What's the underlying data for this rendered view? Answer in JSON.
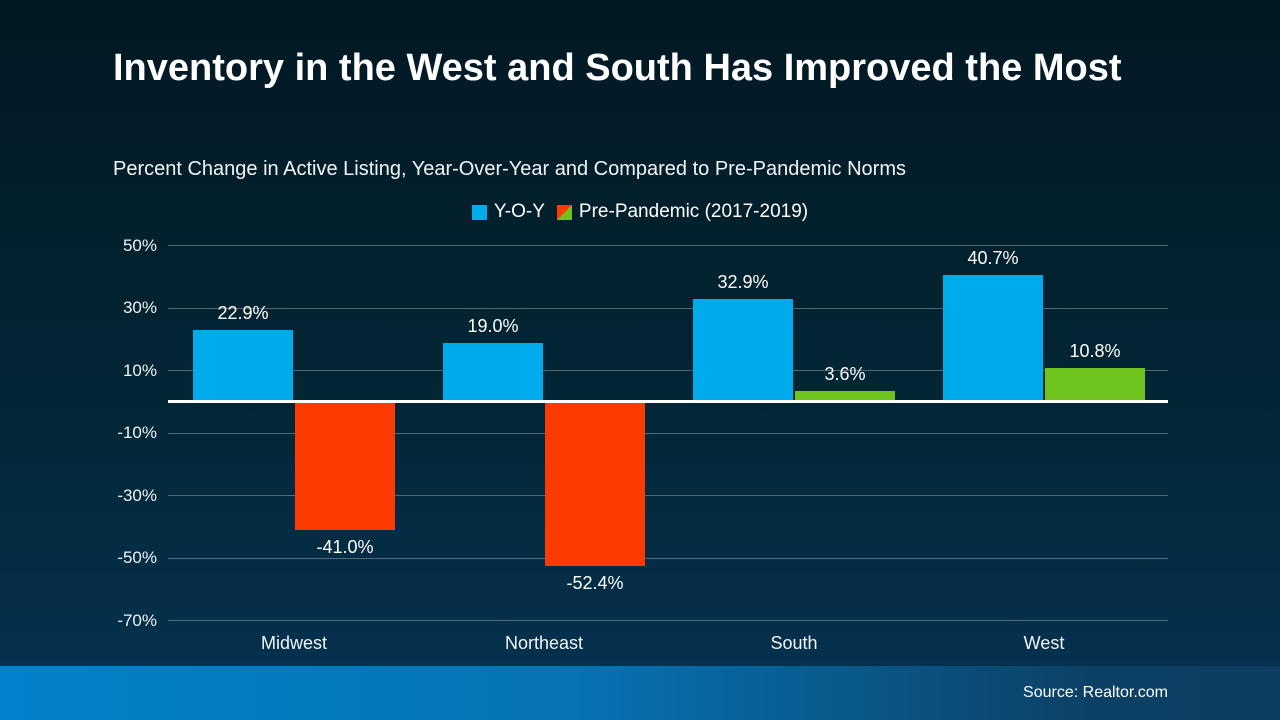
{
  "header": {
    "title": "Inventory in the West and South Has Improved the Most",
    "subtitle": "Percent Change in Active Listing, Year-Over-Year and Compared to Pre-Pandemic Norms"
  },
  "legend": {
    "items": [
      {
        "name": "yoy",
        "label": "Y-O-Y",
        "swatch": "solid",
        "color": "#00ABEC"
      },
      {
        "name": "pre-pandemic",
        "label": "Pre-Pandemic (2017-2019)",
        "swatch": "split",
        "color_negative": "#FB3B02",
        "color_positive": "#6EC41D"
      }
    ]
  },
  "footer": {
    "source": "Source: Realtor.com"
  },
  "colors": {
    "background_top": "#021822",
    "background_bottom": "#053353",
    "bar_yoy": "#00ABEC",
    "bar_pre_positive": "#6EC41D",
    "bar_pre_negative": "#FB3B02",
    "zero_line": "#FFFFFF",
    "gridline": "rgba(255,255,255,0.30)",
    "footer_left": "#0282CB",
    "footer_right": "#0C3D5F"
  },
  "chart_data": {
    "type": "bar",
    "title": "Inventory in the West and South Has Improved the Most",
    "subtitle": "Percent Change in Active Listing, Year-Over-Year and Compared to Pre-Pandemic Norms",
    "categories": [
      "Midwest",
      "Northeast",
      "South",
      "West"
    ],
    "series": [
      {
        "name": "Y-O-Y",
        "values": [
          22.9,
          19.0,
          32.9,
          40.7
        ],
        "labels": [
          "22.9%",
          "19.0%",
          "32.9%",
          "40.7%"
        ],
        "color": "#00ABEC"
      },
      {
        "name": "Pre-Pandemic (2017-2019)",
        "values": [
          -41.0,
          -52.4,
          3.6,
          10.8
        ],
        "labels": [
          "-41.0%",
          "-52.4%",
          "3.6%",
          "10.8%"
        ],
        "color_positive": "#6EC41D",
        "color_negative": "#FB3B02"
      }
    ],
    "xlabel": "",
    "ylabel": "",
    "y_ticks": [
      {
        "value": 50,
        "label": "50%"
      },
      {
        "value": 30,
        "label": "30%"
      },
      {
        "value": 10,
        "label": "10%"
      },
      {
        "value": -10,
        "label": "-10%"
      },
      {
        "value": -30,
        "label": "-30%"
      },
      {
        "value": -50,
        "label": "-50%"
      },
      {
        "value": -70,
        "label": "-70%"
      }
    ],
    "ylim": [
      -70,
      50
    ],
    "grid": true,
    "legend_position": "top-center"
  }
}
